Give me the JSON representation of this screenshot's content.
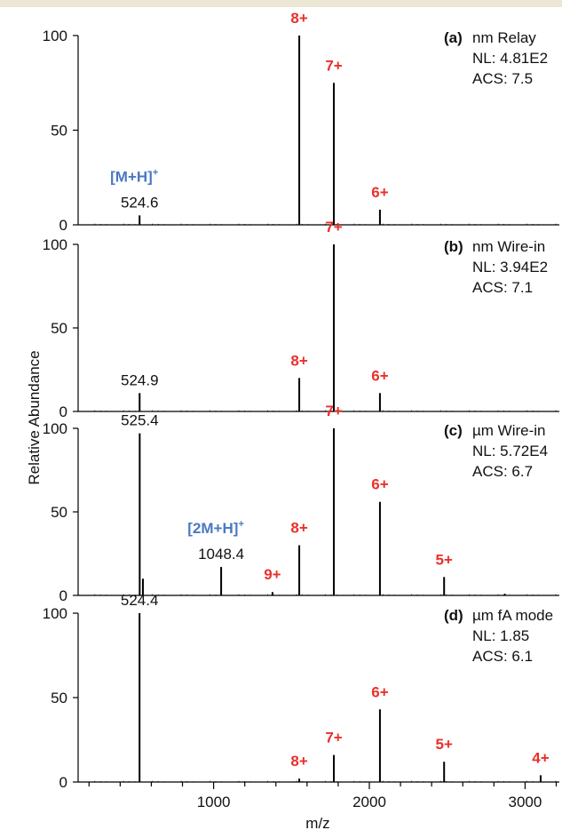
{
  "colors": {
    "charge": "#e8312a",
    "ion": "#4a78c2",
    "trace": "#000000",
    "banner": "#ece7d5"
  },
  "chart_data": {
    "type": "line",
    "shared_x_axis": {
      "xlabel": "m/z",
      "xlim": [
        130,
        3220
      ],
      "ticks": [
        1000,
        2000,
        3000
      ],
      "tick_labels": [
        "1000",
        "2000",
        "3000"
      ],
      "minor_step": 200
    },
    "ylabel": "Relative Abundance",
    "panels": [
      {
        "tag": "(a)",
        "title": "nm Relay",
        "nl": "NL: 4.81E2",
        "acs": "ACS: 7.5",
        "ylim": [
          0,
          100
        ],
        "yticks": [
          "100",
          "50",
          "0"
        ],
        "peaks": [
          {
            "x": 524.6,
            "y": 5
          },
          {
            "x": 1550,
            "y": 100
          },
          {
            "x": 1772,
            "y": 75
          },
          {
            "x": 2068,
            "y": 8
          }
        ],
        "labels": [
          {
            "kind": "charge",
            "text": "8+",
            "x": 1550,
            "y": 100
          },
          {
            "kind": "charge",
            "text": "7+",
            "x": 1772,
            "y": 75
          },
          {
            "kind": "charge",
            "text": "6+",
            "x": 2068,
            "y": 8
          },
          {
            "kind": "ion",
            "text": "[M+H]",
            "sup": "+",
            "x": 524.6,
            "y": 5
          },
          {
            "kind": "mass",
            "text": "524.6",
            "x": 524.6,
            "y": 5
          }
        ]
      },
      {
        "tag": "(b)",
        "title": "nm Wire-in",
        "nl": "NL: 3.94E2",
        "acs": "ACS: 7.1",
        "ylim": [
          0,
          100
        ],
        "yticks": [
          "100",
          "50",
          "0"
        ],
        "peaks": [
          {
            "x": 524.9,
            "y": 11
          },
          {
            "x": 1550,
            "y": 20
          },
          {
            "x": 1772,
            "y": 100
          },
          {
            "x": 2068,
            "y": 11
          }
        ],
        "labels": [
          {
            "kind": "charge",
            "text": "8+",
            "x": 1550,
            "y": 20
          },
          {
            "kind": "charge",
            "text": "7+",
            "x": 1772,
            "y": 100
          },
          {
            "kind": "charge",
            "text": "6+",
            "x": 2068,
            "y": 11
          },
          {
            "kind": "mass",
            "text": "524.9",
            "x": 524.9,
            "y": 11
          }
        ]
      },
      {
        "tag": "(c)",
        "title": "µm Wire-in",
        "nl": "NL: 5.72E4",
        "acs": "ACS: 6.7",
        "ylim": [
          0,
          100
        ],
        "yticks": [
          "100",
          "50",
          "0"
        ],
        "peaks": [
          {
            "x": 525.4,
            "y": 97
          },
          {
            "x": 546,
            "y": 10
          },
          {
            "x": 1048.4,
            "y": 17
          },
          {
            "x": 1378,
            "y": 2
          },
          {
            "x": 1550,
            "y": 30
          },
          {
            "x": 1772,
            "y": 100
          },
          {
            "x": 2068,
            "y": 56
          },
          {
            "x": 2480,
            "y": 11
          },
          {
            "x": 2870,
            "y": 1
          }
        ],
        "labels": [
          {
            "kind": "charge",
            "text": "9+",
            "x": 1378,
            "y": 2
          },
          {
            "kind": "charge",
            "text": "8+",
            "x": 1550,
            "y": 30
          },
          {
            "kind": "charge",
            "text": "7+",
            "x": 1772,
            "y": 100
          },
          {
            "kind": "charge",
            "text": "6+",
            "x": 2068,
            "y": 56
          },
          {
            "kind": "charge",
            "text": "5+",
            "x": 2480,
            "y": 11
          },
          {
            "kind": "mass",
            "text": "525.4",
            "x": 525.4,
            "y": 97
          },
          {
            "kind": "ion",
            "text": "[2M+H]",
            "sup": "+",
            "x": 1048.4,
            "y": 17
          },
          {
            "kind": "mass",
            "text": "1048.4",
            "x": 1048.4,
            "y": 17
          }
        ]
      },
      {
        "tag": "(d)",
        "title": "µm fA mode",
        "nl": "NL: 1.85",
        "acs": "ACS: 6.1",
        "ylim": [
          0,
          100
        ],
        "yticks": [
          "100",
          "50",
          "0"
        ],
        "peaks": [
          {
            "x": 524.4,
            "y": 100
          },
          {
            "x": 1550,
            "y": 2
          },
          {
            "x": 1772,
            "y": 16
          },
          {
            "x": 2068,
            "y": 43
          },
          {
            "x": 2480,
            "y": 12
          },
          {
            "x": 3100,
            "y": 4
          }
        ],
        "labels": [
          {
            "kind": "mass",
            "text": "524.4",
            "x": 524.4,
            "y": 100
          },
          {
            "kind": "charge",
            "text": "8+",
            "x": 1550,
            "y": 2
          },
          {
            "kind": "charge",
            "text": "7+",
            "x": 1772,
            "y": 16
          },
          {
            "kind": "charge",
            "text": "6+",
            "x": 2068,
            "y": 43
          },
          {
            "kind": "charge",
            "text": "5+",
            "x": 2480,
            "y": 12
          },
          {
            "kind": "charge",
            "text": "4+",
            "x": 3100,
            "y": 4
          }
        ]
      }
    ]
  }
}
